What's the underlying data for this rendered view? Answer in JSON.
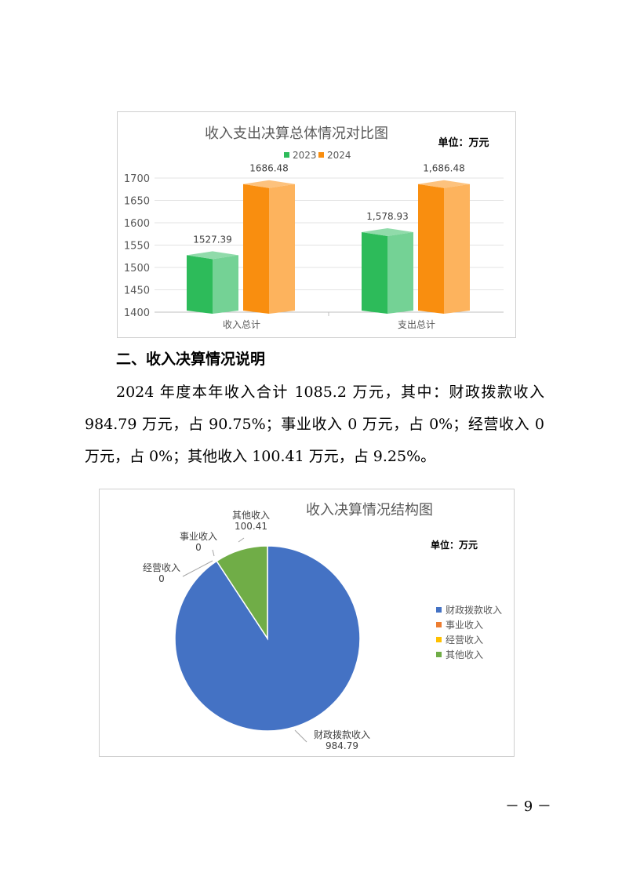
{
  "section_heading": "二、收入决算情况说明",
  "paragraph": "2024 年度本年收入合计 1085.2 万元，其中：财政拨款收入 984.79 万元，占 90.75%；事业收入 0 万元，占 0%；经营收入 0 万元，占 0%；其他收入 100.41 万元，占 9.25%。",
  "page_number": "－ 9 －",
  "chart_data": [
    {
      "type": "bar",
      "title": "收入支出决算总体情况对比图",
      "unit_label": "单位：万元",
      "categories": [
        "收入总计",
        "支出总计"
      ],
      "series": [
        {
          "name": "2023",
          "values": [
            1527.39,
            1578.93
          ],
          "labels": [
            "1527.39",
            "1,578.93"
          ],
          "color": "#2dbb5a",
          "side_color": "#74d295"
        },
        {
          "name": "2024",
          "values": [
            1686.48,
            1686.48
          ],
          "labels": [
            "1686.48",
            "1,686.48"
          ],
          "color": "#f98e0f",
          "side_color": "#fdb35d"
        }
      ],
      "ylim": [
        1400,
        1700
      ],
      "yticks": [
        "1400",
        "1450",
        "1500",
        "1550",
        "1600",
        "1650",
        "1700"
      ],
      "grid": true,
      "legend": "top"
    },
    {
      "type": "pie",
      "title": "收入决算情况结构图",
      "unit_label": "单位：万元",
      "slices": [
        {
          "name": "财政拨款收入",
          "value": 984.79,
          "label": "984.79",
          "color": "#4472c4"
        },
        {
          "name": "事业收入",
          "value": 0,
          "label": "0",
          "color": "#ed7d31"
        },
        {
          "name": "经营收入",
          "value": 0,
          "label": "0",
          "color": "#ffc000"
        },
        {
          "name": "其他收入",
          "value": 100.41,
          "label": "100.41",
          "color": "#70ad47"
        }
      ],
      "legend": "right"
    }
  ]
}
